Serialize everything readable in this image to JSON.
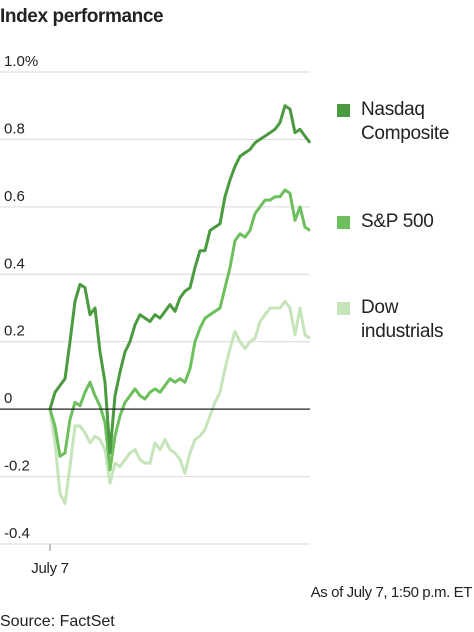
{
  "chart_data": {
    "type": "line",
    "title": "Index performance",
    "annotations": [
      "As of July 7, 1:50 p.m. ET",
      "Source: FactSet"
    ],
    "x": [
      0,
      1,
      2,
      3,
      4,
      5,
      6,
      7,
      8,
      9,
      10,
      11,
      12,
      13,
      14,
      15,
      16,
      17,
      18,
      19,
      20,
      21,
      22,
      23,
      24,
      25,
      26,
      27,
      28,
      29,
      30,
      31,
      32,
      33,
      34,
      35,
      36,
      37,
      38,
      39,
      40,
      41,
      42,
      43,
      44,
      45,
      46,
      47,
      48,
      49,
      50,
      51,
      52
    ],
    "xlim": [
      0,
      52
    ],
    "xticks": [
      {
        "value": 0,
        "label": "July 7"
      }
    ],
    "ylim": [
      -0.4,
      1.0
    ],
    "yticks": [
      -0.4,
      -0.2,
      0,
      0.2,
      0.4,
      0.6,
      0.8,
      {
        "value": 1.0,
        "label": "1.0%"
      }
    ],
    "grid": true,
    "legend": "right",
    "series": [
      {
        "name": "Nasdaq Composite",
        "color": "#4a9a3f",
        "values": [
          0,
          0.05,
          0.07,
          0.09,
          0.2,
          0.32,
          0.37,
          0.36,
          0.28,
          0.3,
          0.17,
          0.08,
          -0.13,
          0.04,
          0.11,
          0.17,
          0.2,
          0.25,
          0.28,
          0.27,
          0.26,
          0.28,
          0.27,
          0.29,
          0.31,
          0.29,
          0.33,
          0.35,
          0.36,
          0.42,
          0.47,
          0.47,
          0.53,
          0.54,
          0.55,
          0.63,
          0.68,
          0.72,
          0.75,
          0.76,
          0.77,
          0.79,
          0.8,
          0.81,
          0.82,
          0.83,
          0.85,
          0.9,
          0.89,
          0.82,
          0.83,
          0.81,
          0.79
        ]
      },
      {
        "name": "S&P 500",
        "color": "#6cbf5c",
        "values": [
          0,
          -0.05,
          -0.14,
          -0.13,
          -0.03,
          0.02,
          0.01,
          0.05,
          0.08,
          0.04,
          0.01,
          -0.04,
          -0.18,
          -0.08,
          -0.02,
          0.02,
          0.04,
          0.06,
          0.04,
          0.03,
          0.05,
          0.06,
          0.05,
          0.07,
          0.09,
          0.08,
          0.09,
          0.08,
          0.12,
          0.2,
          0.24,
          0.27,
          0.28,
          0.29,
          0.3,
          0.36,
          0.42,
          0.5,
          0.52,
          0.51,
          0.53,
          0.58,
          0.6,
          0.62,
          0.62,
          0.63,
          0.63,
          0.65,
          0.64,
          0.56,
          0.6,
          0.54,
          0.53
        ]
      },
      {
        "name": "Dow industrials",
        "color": "#c6e4b9",
        "values": [
          0,
          -0.1,
          -0.25,
          -0.28,
          -0.17,
          -0.05,
          -0.05,
          -0.07,
          -0.1,
          -0.08,
          -0.09,
          -0.12,
          -0.22,
          -0.16,
          -0.17,
          -0.15,
          -0.13,
          -0.12,
          -0.15,
          -0.16,
          -0.16,
          -0.1,
          -0.12,
          -0.09,
          -0.12,
          -0.13,
          -0.15,
          -0.19,
          -0.13,
          -0.09,
          -0.08,
          -0.06,
          -0.02,
          0.02,
          0.05,
          0.12,
          0.18,
          0.23,
          0.2,
          0.18,
          0.2,
          0.21,
          0.26,
          0.28,
          0.3,
          0.3,
          0.3,
          0.32,
          0.3,
          0.22,
          0.3,
          0.22,
          0.21
        ]
      }
    ]
  }
}
